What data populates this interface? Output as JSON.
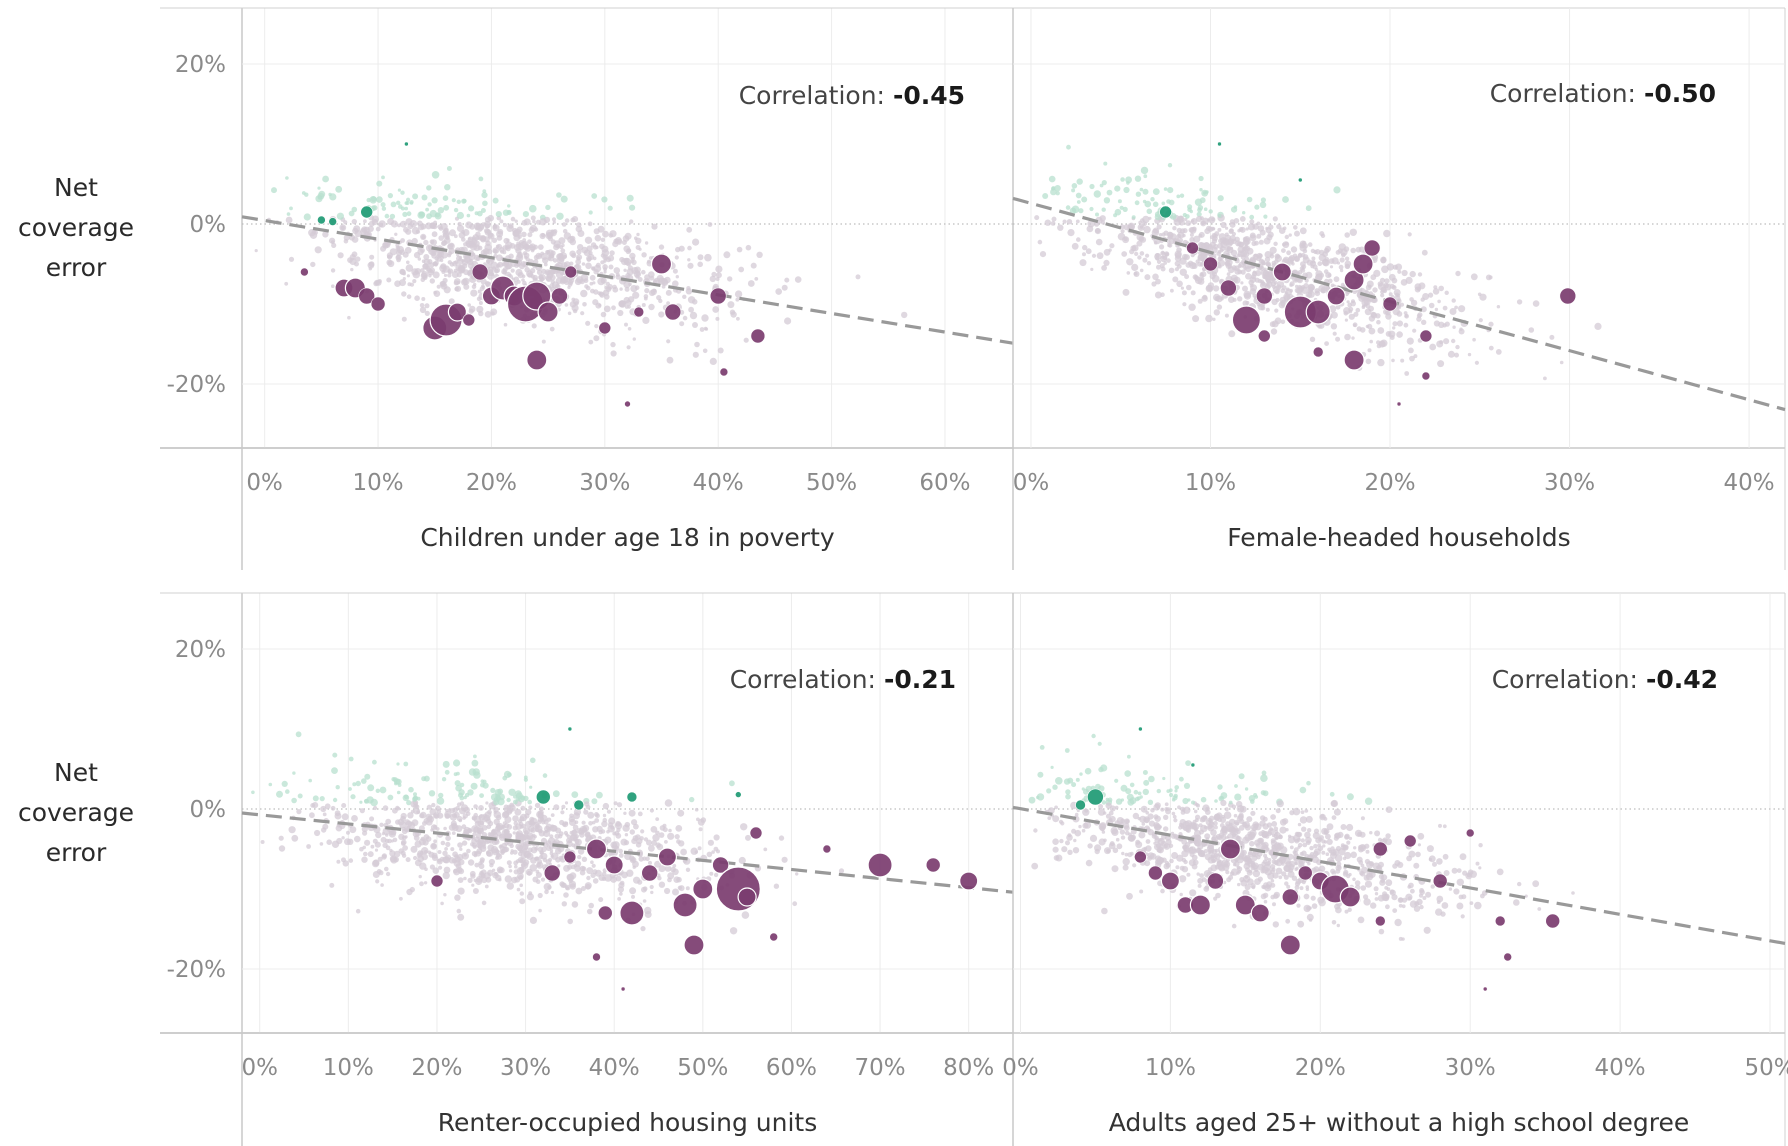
{
  "colors": {
    "over": "#1e9a74",
    "under": "#7b3c6f",
    "neutral": "#d4cbd6",
    "over_light": "#b8e0cf",
    "trend": "#999999",
    "grid": "#ececec"
  },
  "y_axis_label": [
    "Net",
    "coverage",
    "error"
  ],
  "chart_data": [
    {
      "type": "scatter",
      "xlabel": "Children under age 18 in poverty",
      "ylabel": "Net coverage error",
      "correlation_label": "Correlation:",
      "correlation": "-0.45",
      "xlim": [
        -2,
        66
      ],
      "ylim": [
        -28,
        27
      ],
      "y_ticks": [
        -20,
        0,
        20
      ],
      "x_ticks": [
        0,
        10,
        20,
        30,
        40,
        50,
        60
      ],
      "trend": [
        [
          -2,
          0.9
        ],
        [
          66,
          -14.9
        ]
      ],
      "points": [
        [
          3.5,
          -6,
          4
        ],
        [
          5,
          0.5,
          4
        ],
        [
          6,
          0.3,
          4
        ],
        [
          7,
          -8,
          9
        ],
        [
          8,
          -8,
          10
        ],
        [
          9,
          1.5,
          6
        ],
        [
          9,
          -9,
          8
        ],
        [
          10,
          -10,
          7
        ],
        [
          12.5,
          10,
          2
        ],
        [
          15,
          -13,
          12
        ],
        [
          16,
          -12,
          16
        ],
        [
          17,
          -11,
          9
        ],
        [
          18,
          -12,
          6
        ],
        [
          19,
          -6,
          8
        ],
        [
          20,
          -9,
          9
        ],
        [
          21,
          -8,
          12
        ],
        [
          22,
          -9,
          10
        ],
        [
          23,
          -10,
          18
        ],
        [
          24,
          -9,
          14
        ],
        [
          25,
          -11,
          10
        ],
        [
          24,
          -17,
          10
        ],
        [
          26,
          -9,
          8
        ],
        [
          27,
          -6,
          6
        ],
        [
          30,
          -13,
          6
        ],
        [
          33,
          -11,
          5
        ],
        [
          35,
          -5,
          10
        ],
        [
          36,
          -11,
          8
        ],
        [
          40,
          -9,
          8
        ],
        [
          40.5,
          -18.5,
          4
        ],
        [
          43.5,
          -14,
          7
        ],
        [
          32,
          -22.5,
          3
        ]
      ]
    },
    {
      "type": "scatter",
      "xlabel": "Female-headed households",
      "ylabel": "Net coverage error",
      "correlation_label": "Correlation:",
      "correlation": "-0.50",
      "xlim": [
        -1,
        42
      ],
      "ylim": [
        -28,
        27
      ],
      "y_ticks": [
        -20,
        0,
        20
      ],
      "x_ticks": [
        0,
        10,
        20,
        30,
        40
      ],
      "trend": [
        [
          -1,
          3.2
        ],
        [
          42,
          -23.2
        ]
      ],
      "points": [
        [
          7.5,
          1.5,
          6
        ],
        [
          10.5,
          10,
          2
        ],
        [
          15,
          5.5,
          2
        ],
        [
          9,
          -3,
          6
        ],
        [
          10,
          -5,
          7
        ],
        [
          11,
          -8,
          8
        ],
        [
          12,
          -12,
          14
        ],
        [
          13,
          -9,
          8
        ],
        [
          14,
          -6,
          9
        ],
        [
          15,
          -11,
          16
        ],
        [
          16,
          -11,
          12
        ],
        [
          17,
          -9,
          9
        ],
        [
          18,
          -7,
          10
        ],
        [
          18.5,
          -5,
          10
        ],
        [
          19,
          -3,
          8
        ],
        [
          18,
          -17,
          10
        ],
        [
          20,
          -10,
          7
        ],
        [
          22,
          -14,
          6
        ],
        [
          22,
          -19,
          4
        ],
        [
          29.9,
          -9,
          8
        ],
        [
          20.5,
          -22.5,
          2
        ],
        [
          13,
          -14,
          6
        ],
        [
          16,
          -16,
          5
        ]
      ]
    },
    {
      "type": "scatter",
      "xlabel": "Renter-occupied housing units",
      "ylabel": "Net coverage error",
      "correlation_label": "Correlation:",
      "correlation": "-0.21",
      "xlim": [
        -2,
        85
      ],
      "ylim": [
        -28,
        27
      ],
      "y_ticks": [
        -20,
        0,
        20
      ],
      "x_ticks": [
        0,
        10,
        20,
        30,
        40,
        50,
        60,
        70,
        80
      ],
      "trend": [
        [
          -2,
          -0.5
        ],
        [
          85,
          -10.4
        ]
      ],
      "points": [
        [
          20,
          -9,
          6
        ],
        [
          32,
          1.5,
          7
        ],
        [
          35,
          10,
          2
        ],
        [
          36,
          0.5,
          5
        ],
        [
          42,
          1.5,
          5
        ],
        [
          54,
          1.8,
          3
        ],
        [
          33,
          -8,
          8
        ],
        [
          35,
          -6,
          6
        ],
        [
          38,
          -5,
          10
        ],
        [
          40,
          -7,
          9
        ],
        [
          42,
          -13,
          12
        ],
        [
          44,
          -8,
          8
        ],
        [
          46,
          -6,
          9
        ],
        [
          48,
          -12,
          12
        ],
        [
          50,
          -10,
          10
        ],
        [
          52,
          -7,
          8
        ],
        [
          54,
          -10,
          22
        ],
        [
          55,
          -11,
          9
        ],
        [
          49,
          -17,
          10
        ],
        [
          56,
          -3,
          6
        ],
        [
          58,
          -16,
          4
        ],
        [
          64,
          -5,
          4
        ],
        [
          70,
          -7,
          12
        ],
        [
          76,
          -7,
          7
        ],
        [
          80,
          -9,
          9
        ],
        [
          39,
          -13,
          7
        ],
        [
          41,
          -22.5,
          2
        ],
        [
          38,
          -18.5,
          4
        ]
      ]
    },
    {
      "type": "scatter",
      "xlabel": "Adults aged 25+ without a high school degree",
      "ylabel": "Net coverage error",
      "correlation_label": "Correlation:",
      "correlation": "-0.42",
      "xlim": [
        -0.5,
        51
      ],
      "ylim": [
        -28,
        27
      ],
      "y_ticks": [
        -20,
        0,
        20
      ],
      "x_ticks": [
        0,
        10,
        20,
        30,
        40,
        50
      ],
      "trend": [
        [
          -0.5,
          0.2
        ],
        [
          51,
          -16.8
        ]
      ],
      "points": [
        [
          4,
          0.5,
          5
        ],
        [
          5,
          1.5,
          8
        ],
        [
          8,
          10,
          2
        ],
        [
          11.5,
          5.5,
          2
        ],
        [
          8,
          -6,
          6
        ],
        [
          9,
          -8,
          7
        ],
        [
          10,
          -9,
          9
        ],
        [
          11,
          -12,
          8
        ],
        [
          12,
          -12,
          10
        ],
        [
          13,
          -9,
          8
        ],
        [
          14,
          -5,
          10
        ],
        [
          15,
          -12,
          10
        ],
        [
          16,
          -13,
          9
        ],
        [
          18,
          -11,
          8
        ],
        [
          19,
          -8,
          7
        ],
        [
          20,
          -9,
          9
        ],
        [
          21,
          -10,
          14
        ],
        [
          22,
          -11,
          10
        ],
        [
          18,
          -17,
          10
        ],
        [
          24,
          -5,
          7
        ],
        [
          26,
          -4,
          6
        ],
        [
          28,
          -9,
          7
        ],
        [
          30,
          -3,
          4
        ],
        [
          32,
          -14,
          5
        ],
        [
          32.5,
          -18.5,
          4
        ],
        [
          35.5,
          -14,
          7
        ],
        [
          31,
          -22.5,
          2
        ],
        [
          24,
          -14,
          5
        ]
      ]
    }
  ]
}
